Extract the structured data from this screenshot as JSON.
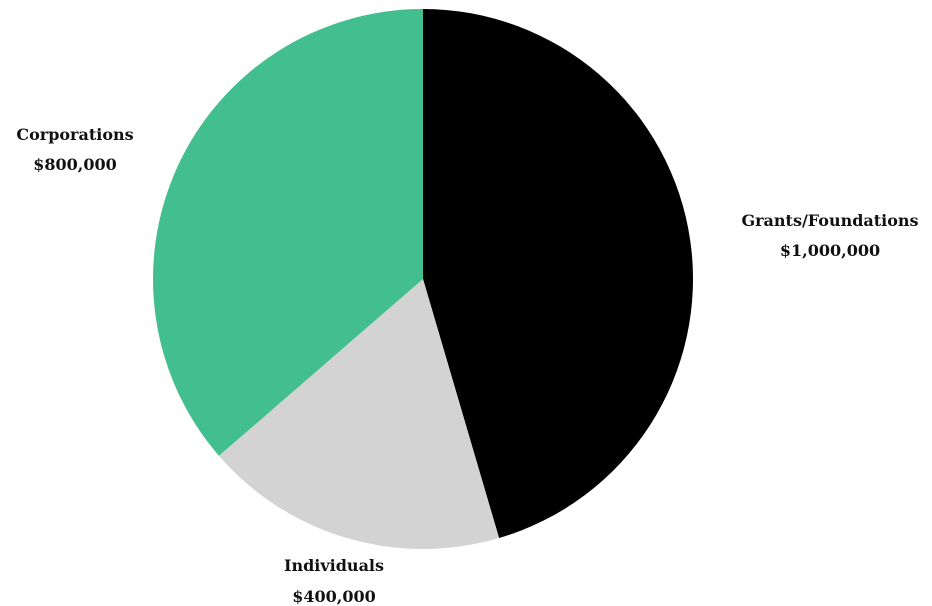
{
  "chart_data": {
    "type": "pie",
    "slices": [
      {
        "name": "Grants/Foundations",
        "value_label": "$1,000,000",
        "value": 1000000,
        "color": "#000000"
      },
      {
        "name": "Individuals",
        "value_label": "$400,000",
        "value": 400000,
        "color": "#d3d3d3"
      },
      {
        "name": "Corporations",
        "value_label": "$800,000",
        "value": 800000,
        "color": "#43be8f"
      }
    ],
    "start_angle_deg": 0,
    "direction": "clockwise",
    "legend": "none"
  }
}
